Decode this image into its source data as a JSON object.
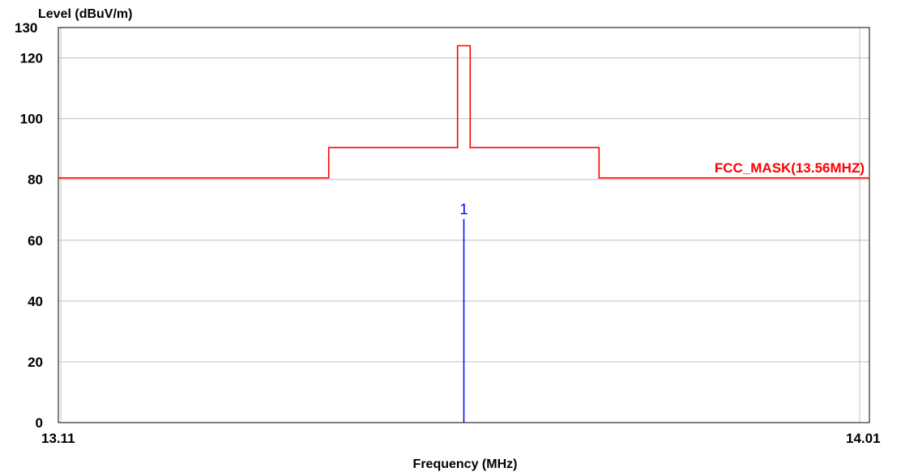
{
  "chart_data": {
    "type": "line",
    "ylabel": "Level (dBuV/m)",
    "xlabel": "Frequency (MHz)",
    "xlim": [
      13.11,
      14.01
    ],
    "ylim": [
      0,
      130
    ],
    "x_tick_labels": [
      "13.11",
      "14.01"
    ],
    "y_ticks": [
      0,
      20,
      40,
      60,
      80,
      100,
      120
    ],
    "y_top_label": "130",
    "grid": true,
    "series": [
      {
        "name": "FCC_MASK(13.56MHZ)",
        "color": "#ff0000",
        "step_points": [
          [
            13.11,
            80.5
          ],
          [
            13.41,
            80.5
          ],
          [
            13.41,
            90.5
          ],
          [
            13.553,
            90.5
          ],
          [
            13.553,
            124
          ],
          [
            13.567,
            124
          ],
          [
            13.567,
            90.5
          ],
          [
            13.71,
            90.5
          ],
          [
            13.71,
            80.5
          ],
          [
            14.01,
            80.5
          ]
        ]
      }
    ],
    "markers": [
      {
        "label": "1",
        "x": 13.56,
        "y": 67,
        "color": "#0000ff"
      }
    ]
  }
}
